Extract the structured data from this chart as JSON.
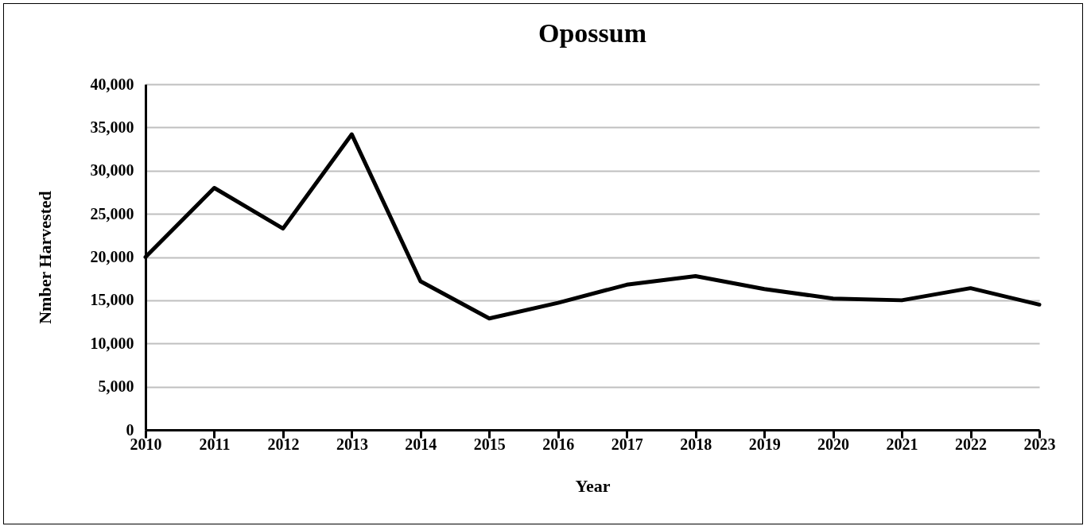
{
  "chart_data": {
    "type": "line",
    "title": "Opossum",
    "xlabel": "Year",
    "ylabel": "Nmber Harvested",
    "categories": [
      "2010",
      "2011",
      "2012",
      "2013",
      "2014",
      "2015",
      "2016",
      "2017",
      "2018",
      "2019",
      "2020",
      "2021",
      "2022",
      "2023"
    ],
    "series": [
      {
        "color": "#000000",
        "values": [
          20000,
          28000,
          23300,
          34200,
          17200,
          12900,
          14700,
          16800,
          17800,
          16300,
          15200,
          15000,
          16400,
          14500
        ]
      }
    ],
    "ylim": [
      0,
      40000
    ],
    "yticks": [
      0,
      {
        "value": 5000,
        "label": "5,000"
      },
      {
        "value": 10000,
        "label": "10,000"
      },
      {
        "value": 15000,
        "label": "15,000"
      },
      {
        "value": 20000,
        "label": "20,000"
      },
      {
        "value": 25000,
        "label": "25,000"
      },
      {
        "value": 30000,
        "label": "30,000"
      },
      {
        "value": 35000,
        "label": "35,000"
      },
      {
        "value": 40000,
        "label": "40,000"
      }
    ],
    "grid": "y",
    "marker": "none",
    "line_style": "solid"
  }
}
